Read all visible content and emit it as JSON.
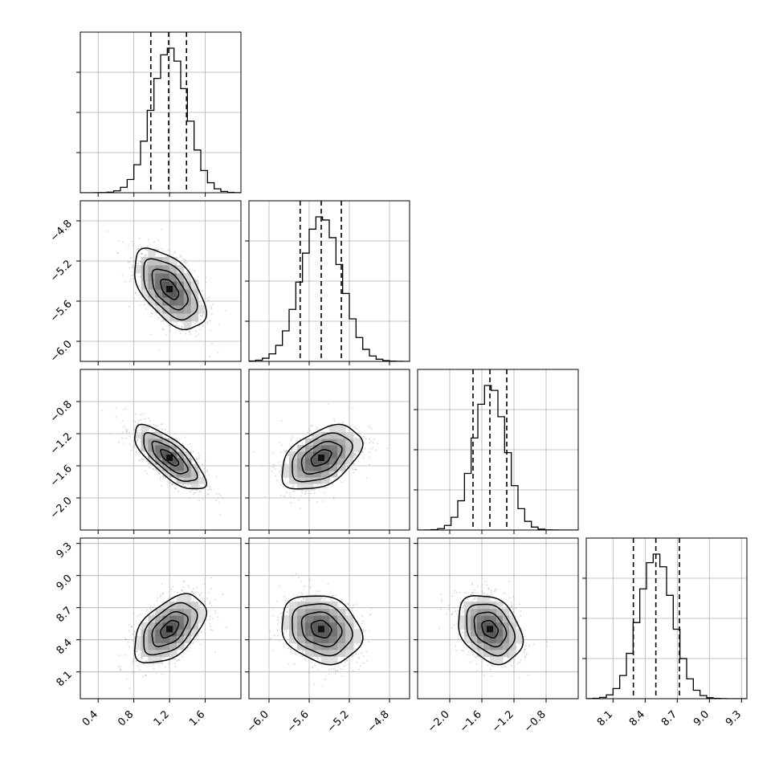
{
  "chart_data": {
    "type": "corner",
    "parameters": [
      {
        "mean": 1.2,
        "std": 0.2,
        "quantiles": [
          0.99,
          1.19,
          1.39
        ],
        "range": [
          0.2,
          2.0
        ],
        "ticks": [
          0.4,
          0.8,
          1.2,
          1.6
        ],
        "tick_labels": [
          "0.4",
          "0.8",
          "1.2",
          "1.6"
        ]
      },
      {
        "mean": -5.48,
        "std": 0.2,
        "quantiles": [
          -5.69,
          -5.48,
          -5.28
        ],
        "range": [
          -6.2,
          -4.6
        ],
        "ticks": [
          -6.0,
          -5.6,
          -5.2,
          -4.8
        ],
        "tick_labels": [
          "−6.0",
          "−5.6",
          "−5.2",
          "−4.8"
        ]
      },
      {
        "mean": -1.5,
        "std": 0.2,
        "quantiles": [
          -1.71,
          -1.5,
          -1.29
        ],
        "range": [
          -2.4,
          -0.4
        ],
        "ticks": [
          -2.0,
          -1.6,
          -1.2,
          -0.8
        ],
        "tick_labels": [
          "−2.0",
          "−1.6",
          "−1.2",
          "−0.8"
        ]
      },
      {
        "mean": 8.5,
        "std": 0.16,
        "quantiles": [
          8.29,
          8.5,
          8.72
        ],
        "range": [
          7.85,
          9.35
        ],
        "ticks": [
          8.1,
          8.4,
          8.7,
          9.0,
          9.3
        ],
        "tick_labels": [
          "8.1",
          "8.4",
          "8.7",
          "9.0",
          "9.3"
        ]
      }
    ],
    "correlations": [
      {
        "pair": [
          0,
          1
        ],
        "rho": -0.55
      },
      {
        "pair": [
          0,
          2
        ],
        "rho": -0.75
      },
      {
        "pair": [
          1,
          2
        ],
        "rho": 0.45
      },
      {
        "pair": [
          0,
          3
        ],
        "rho": 0.5
      },
      {
        "pair": [
          1,
          3
        ],
        "rho": -0.2
      },
      {
        "pair": [
          2,
          3
        ],
        "rho": -0.3
      }
    ],
    "grid": true
  }
}
